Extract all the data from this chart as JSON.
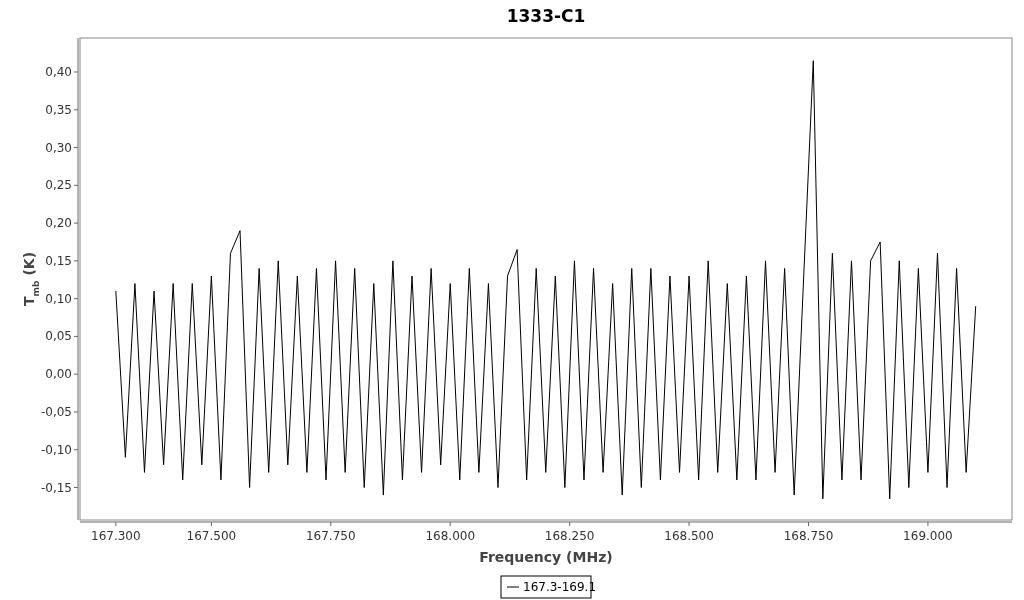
{
  "chart_data": {
    "type": "line",
    "title": "1333-C1",
    "xlabel": "Frequency (MHz)",
    "ylabel": "T$_{mb}$ (K)",
    "xlim": [
      167225,
      169176
    ],
    "xticks": [
      {
        "value": 167300,
        "label": "167.300"
      },
      {
        "value": 167500,
        "label": "167.500"
      },
      {
        "value": 167750,
        "label": "167.750"
      },
      {
        "value": 168000,
        "label": "168.000"
      },
      {
        "value": 168250,
        "label": "168.250"
      },
      {
        "value": 168500,
        "label": "168.500"
      },
      {
        "value": 168750,
        "label": "168.750"
      },
      {
        "value": 169000,
        "label": "169.000"
      }
    ],
    "ylim": [
      -0.193,
      0.445
    ],
    "yticks": [
      {
        "value": -0.15,
        "label": "-0,15"
      },
      {
        "value": -0.1,
        "label": "-0,10"
      },
      {
        "value": -0.05,
        "label": "-0,05"
      },
      {
        "value": 0,
        "label": "0,00"
      },
      {
        "value": 0.05,
        "label": "0,05"
      },
      {
        "value": 0.1,
        "label": "0,10"
      },
      {
        "value": 0.15,
        "label": "0,15"
      },
      {
        "value": 0.2,
        "label": "0,20"
      },
      {
        "value": 0.25,
        "label": "0,25"
      },
      {
        "value": 0.3,
        "label": "0,30"
      },
      {
        "value": 0.35,
        "label": "0,35"
      },
      {
        "value": 0.4,
        "label": "0,40"
      }
    ],
    "grid": false,
    "legend": "bottom",
    "marker": "none",
    "line_style": "solid",
    "series": [
      {
        "name": "167.3-169.1",
        "color": "#000000",
        "x": [
          167300,
          167320,
          167340,
          167360,
          167380,
          167400,
          167420,
          167440,
          167460,
          167480,
          167500,
          167520,
          167540,
          167560,
          167580,
          167600,
          167620,
          167640,
          167660,
          167680,
          167700,
          167720,
          167740,
          167760,
          167780,
          167800,
          167820,
          167840,
          167860,
          167880,
          167900,
          167920,
          167940,
          167960,
          167980,
          168000,
          168020,
          168040,
          168060,
          168080,
          168100,
          168120,
          168140,
          168160,
          168180,
          168200,
          168220,
          168240,
          168260,
          168280,
          168300,
          168320,
          168340,
          168360,
          168380,
          168400,
          168420,
          168440,
          168460,
          168480,
          168500,
          168520,
          168540,
          168560,
          168580,
          168600,
          168620,
          168640,
          168660,
          168680,
          168700,
          168720,
          168740,
          168760,
          168780,
          168800,
          168820,
          168840,
          168860,
          168880,
          168900,
          168920,
          168940,
          168960,
          168980,
          169000,
          169020,
          169040,
          169060,
          169080,
          169100
        ],
        "values": [
          0.11,
          -0.11,
          0.12,
          -0.13,
          0.11,
          -0.12,
          0.12,
          -0.14,
          0.12,
          -0.12,
          0.13,
          -0.14,
          0.16,
          0.19,
          -0.15,
          0.14,
          -0.13,
          0.15,
          -0.12,
          0.13,
          -0.13,
          0.14,
          -0.14,
          0.15,
          -0.13,
          0.14,
          -0.15,
          0.12,
          -0.16,
          0.15,
          -0.14,
          0.13,
          -0.13,
          0.14,
          -0.12,
          0.12,
          -0.14,
          0.14,
          -0.13,
          0.12,
          -0.15,
          0.13,
          0.165,
          -0.14,
          0.14,
          -0.13,
          0.13,
          -0.15,
          0.15,
          -0.14,
          0.14,
          -0.13,
          0.12,
          -0.16,
          0.14,
          -0.15,
          0.14,
          -0.14,
          0.13,
          -0.13,
          0.13,
          -0.14,
          0.15,
          -0.13,
          0.12,
          -0.14,
          0.13,
          -0.14,
          0.15,
          -0.13,
          0.14,
          -0.16,
          0.13,
          0.415,
          -0.165,
          0.16,
          -0.14,
          0.15,
          -0.14,
          0.15,
          0.175,
          -0.165,
          0.15,
          -0.15,
          0.14,
          -0.13,
          0.16,
          -0.15,
          0.14,
          -0.13,
          0.09
        ]
      }
    ]
  }
}
